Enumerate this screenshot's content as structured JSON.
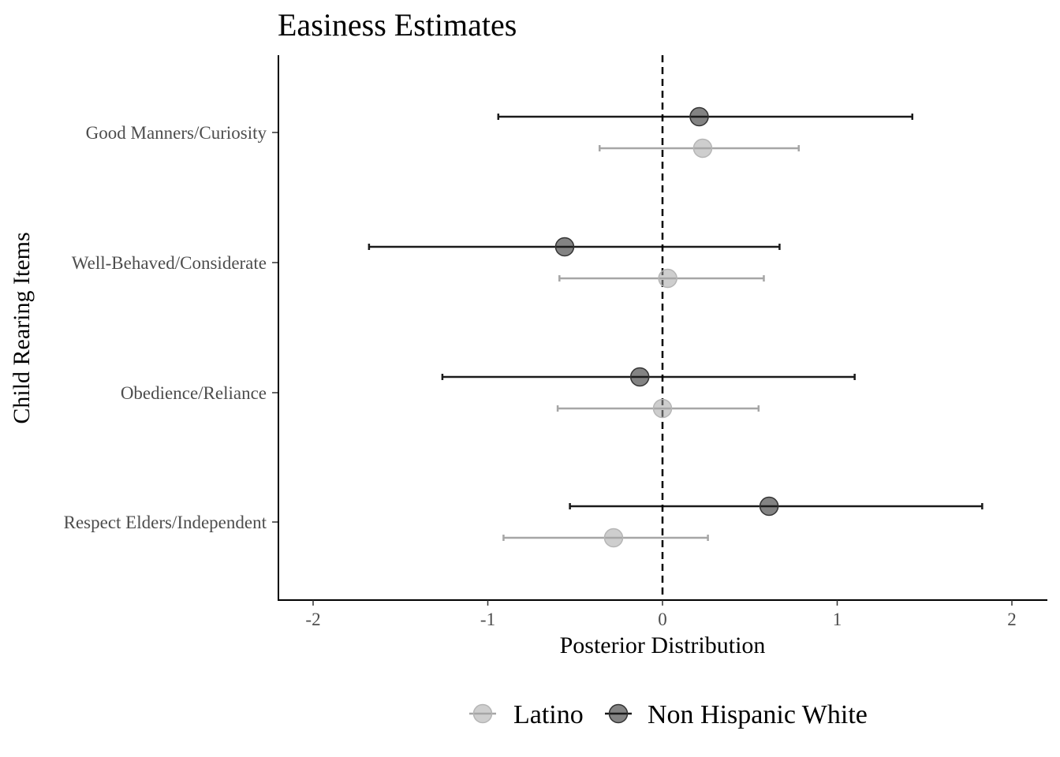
{
  "chart_data": {
    "type": "scatter",
    "subtype": "dot-and-whisker",
    "title": "Easiness Estimates",
    "xlabel": "Posterior Distribution",
    "ylabel": "Child Rearing Items",
    "xlim": [
      -2.2,
      2.2
    ],
    "x_ticks": [
      -2,
      -1,
      0,
      1,
      2
    ],
    "reference_line": {
      "x": 0,
      "style": "dashed"
    },
    "categories": [
      "Good Manners/Curiosity",
      "Well-Behaved/Considerate",
      "Obedience/Reliance",
      "Respect Elders/Independent"
    ],
    "series": [
      {
        "name": "Latino",
        "color": "#a6a6a6",
        "points": [
          {
            "category": "Good Manners/Curiosity",
            "estimate": 0.23,
            "lower": -0.36,
            "upper": 0.78
          },
          {
            "category": "Well-Behaved/Considerate",
            "estimate": 0.03,
            "lower": -0.59,
            "upper": 0.58
          },
          {
            "category": "Obedience/Reliance",
            "estimate": 0.0,
            "lower": -0.6,
            "upper": 0.55
          },
          {
            "category": "Respect Elders/Independent",
            "estimate": -0.28,
            "lower": -0.91,
            "upper": 0.26
          }
        ]
      },
      {
        "name": "Non Hispanic White",
        "color": "#1a1a1a",
        "points": [
          {
            "category": "Good Manners/Curiosity",
            "estimate": 0.21,
            "lower": -0.94,
            "upper": 1.43
          },
          {
            "category": "Well-Behaved/Considerate",
            "estimate": -0.56,
            "lower": -1.68,
            "upper": 0.67
          },
          {
            "category": "Obedience/Reliance",
            "estimate": -0.13,
            "lower": -1.26,
            "upper": 1.1
          },
          {
            "category": "Respect Elders/Independent",
            "estimate": 0.61,
            "lower": -0.53,
            "upper": 1.83
          }
        ]
      }
    ],
    "legend": {
      "position": "bottom",
      "entries": [
        "Latino",
        "Non Hispanic White"
      ]
    },
    "grid": false
  }
}
